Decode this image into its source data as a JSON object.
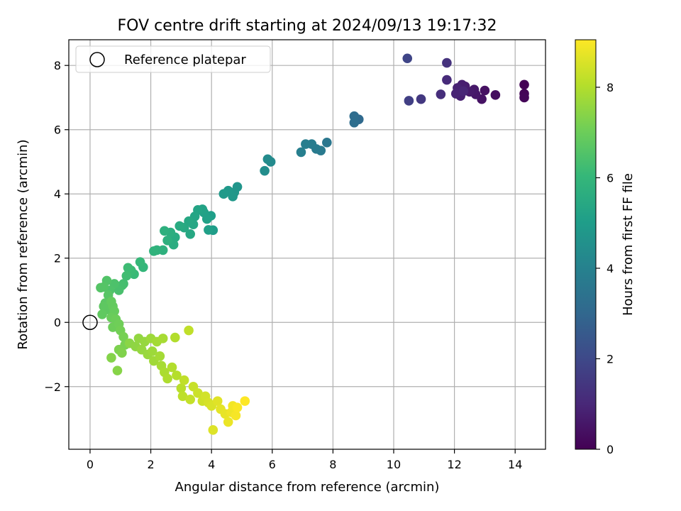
{
  "chart_data": {
    "type": "scatter",
    "title": "FOV centre drift starting at 2024/09/13 19:17:32",
    "xlabel": "Angular distance from reference (arcmin)",
    "ylabel": "Rotation from reference (arcmin)",
    "xlim": [
      -0.7,
      15.0
    ],
    "ylim": [
      -3.95,
      8.8
    ],
    "xticks": [
      0,
      2,
      4,
      6,
      8,
      10,
      12,
      14
    ],
    "yticks": [
      -2,
      0,
      2,
      4,
      6,
      8
    ],
    "xtick_labels": [
      "0",
      "2",
      "4",
      "6",
      "8",
      "10",
      "12",
      "14"
    ],
    "ytick_labels": [
      "−2",
      "0",
      "2",
      "4",
      "6",
      "8"
    ],
    "grid": true,
    "legend": {
      "position": "top-left",
      "entries": [
        {
          "label": "Reference platepar",
          "marker": "open-circle"
        }
      ]
    },
    "reference": {
      "x": 0,
      "y": 0
    },
    "colorbar": {
      "label": "Hours from first FF file",
      "range": [
        0,
        9.05
      ],
      "ticks": [
        0,
        2,
        4,
        6,
        8
      ],
      "tick_labels": [
        "0",
        "2",
        "4",
        "6",
        "8"
      ],
      "colormap": "viridis"
    },
    "colors": [
      "#440154",
      "#482878",
      "#3e4989",
      "#31688e",
      "#26828e",
      "#1f9e89",
      "#35b779",
      "#6ece58",
      "#b5de2b",
      "#fde725"
    ],
    "points": [
      [
        14.3,
        7.4,
        0.0
      ],
      [
        14.3,
        7.12,
        0.05
      ],
      [
        14.3,
        7.0,
        0.1
      ],
      [
        13.35,
        7.08,
        0.3
      ],
      [
        13.0,
        7.22,
        0.4
      ],
      [
        12.9,
        6.95,
        0.45
      ],
      [
        12.7,
        7.1,
        0.55
      ],
      [
        12.65,
        7.25,
        0.6
      ],
      [
        12.5,
        7.18,
        0.65
      ],
      [
        12.35,
        7.35,
        0.7
      ],
      [
        12.25,
        7.4,
        0.75
      ],
      [
        12.2,
        7.05,
        0.8
      ],
      [
        12.1,
        7.3,
        0.85
      ],
      [
        12.05,
        7.12,
        0.9
      ],
      [
        12.3,
        7.2,
        0.95
      ],
      [
        11.75,
        7.55,
        1.1
      ],
      [
        11.55,
        7.1,
        1.2
      ],
      [
        11.75,
        8.08,
        1.3
      ],
      [
        10.9,
        6.95,
        1.5
      ],
      [
        10.5,
        6.9,
        1.7
      ],
      [
        10.45,
        8.22,
        1.9
      ],
      [
        8.85,
        6.32,
        3.1
      ],
      [
        8.7,
        6.42,
        3.2
      ],
      [
        8.7,
        6.22,
        3.25
      ],
      [
        7.8,
        5.6,
        3.6
      ],
      [
        7.6,
        5.35,
        3.7
      ],
      [
        7.45,
        5.4,
        3.75
      ],
      [
        7.3,
        5.55,
        3.8
      ],
      [
        7.1,
        5.55,
        3.85
      ],
      [
        6.95,
        5.3,
        3.9
      ],
      [
        5.95,
        5.0,
        4.3
      ],
      [
        5.85,
        5.08,
        4.35
      ],
      [
        5.75,
        4.72,
        4.4
      ],
      [
        4.85,
        4.22,
        4.7
      ],
      [
        4.75,
        4.05,
        4.75
      ],
      [
        4.7,
        3.92,
        4.8
      ],
      [
        4.55,
        4.1,
        4.85
      ],
      [
        4.4,
        4.0,
        4.9
      ],
      [
        4.05,
        2.87,
        5.0
      ],
      [
        3.98,
        3.32,
        5.05
      ],
      [
        3.9,
        2.88,
        5.1
      ],
      [
        3.85,
        3.22,
        5.15
      ],
      [
        3.75,
        3.42,
        5.15
      ],
      [
        3.7,
        3.52,
        5.2
      ],
      [
        3.55,
        3.5,
        5.25
      ],
      [
        3.45,
        3.3,
        5.3
      ],
      [
        3.4,
        3.05,
        5.35
      ],
      [
        3.3,
        2.75,
        5.4
      ],
      [
        3.25,
        3.15,
        5.4
      ],
      [
        3.1,
        2.95,
        5.45
      ],
      [
        2.95,
        3.0,
        5.5
      ],
      [
        2.8,
        2.65,
        5.55
      ],
      [
        2.75,
        2.42,
        5.6
      ],
      [
        2.65,
        2.8,
        5.65
      ],
      [
        2.55,
        2.55,
        5.7
      ],
      [
        2.45,
        2.85,
        5.7
      ],
      [
        2.4,
        2.25,
        5.75
      ],
      [
        2.2,
        2.25,
        5.8
      ],
      [
        2.1,
        2.22,
        5.85
      ],
      [
        1.75,
        1.72,
        6.0
      ],
      [
        1.65,
        1.88,
        6.05
      ],
      [
        1.45,
        1.5,
        6.1
      ],
      [
        1.35,
        1.62,
        6.15
      ],
      [
        1.25,
        1.7,
        6.2
      ],
      [
        1.2,
        1.45,
        6.25
      ],
      [
        1.1,
        1.2,
        6.3
      ],
      [
        1.05,
        1.15,
        6.35
      ],
      [
        0.95,
        1.0,
        6.4
      ],
      [
        0.8,
        1.2,
        6.45
      ],
      [
        0.65,
        1.0,
        6.5
      ],
      [
        0.55,
        1.3,
        6.55
      ],
      [
        0.45,
        1.1,
        6.6
      ],
      [
        0.35,
        1.08,
        6.6
      ],
      [
        0.6,
        0.85,
        6.65
      ],
      [
        0.5,
        0.6,
        6.7
      ],
      [
        0.55,
        0.4,
        6.75
      ],
      [
        0.45,
        0.5,
        6.75
      ],
      [
        0.4,
        0.25,
        6.8
      ],
      [
        0.7,
        0.65,
        6.85
      ],
      [
        0.75,
        0.5,
        6.85
      ],
      [
        0.8,
        0.35,
        6.9
      ],
      [
        0.7,
        0.15,
        6.95
      ],
      [
        0.75,
        -0.15,
        7.0
      ],
      [
        0.85,
        0.1,
        7.0
      ],
      [
        0.95,
        -0.05,
        7.05
      ],
      [
        1.0,
        -0.25,
        7.1
      ],
      [
        1.1,
        -0.45,
        7.15
      ],
      [
        1.15,
        -0.7,
        7.2
      ],
      [
        0.95,
        -0.85,
        7.25
      ],
      [
        1.05,
        -0.95,
        7.3
      ],
      [
        0.7,
        -1.1,
        7.35
      ],
      [
        0.9,
        -1.5,
        7.4
      ],
      [
        1.3,
        -0.65,
        7.45
      ],
      [
        1.5,
        -0.75,
        7.5
      ],
      [
        1.6,
        -0.5,
        7.55
      ],
      [
        1.7,
        -0.85,
        7.6
      ],
      [
        1.8,
        -0.6,
        7.6
      ],
      [
        1.9,
        -1.0,
        7.65
      ],
      [
        2.0,
        -0.5,
        7.7
      ],
      [
        2.05,
        -0.9,
        7.7
      ],
      [
        2.1,
        -1.2,
        7.75
      ],
      [
        2.2,
        -0.6,
        7.8
      ],
      [
        2.3,
        -1.05,
        7.8
      ],
      [
        2.35,
        -1.35,
        7.85
      ],
      [
        2.4,
        -0.5,
        7.85
      ],
      [
        2.45,
        -1.55,
        7.9
      ],
      [
        2.55,
        -1.75,
        7.95
      ],
      [
        2.7,
        -1.4,
        8.0
      ],
      [
        2.8,
        -0.47,
        8.0
      ],
      [
        2.85,
        -1.65,
        8.05
      ],
      [
        3.0,
        -2.05,
        8.1
      ],
      [
        3.05,
        -2.3,
        8.15
      ],
      [
        3.1,
        -1.8,
        8.2
      ],
      [
        3.25,
        -0.25,
        8.2
      ],
      [
        3.3,
        -2.4,
        8.25
      ],
      [
        3.4,
        -2.0,
        8.3
      ],
      [
        3.55,
        -2.2,
        8.35
      ],
      [
        3.7,
        -2.45,
        8.4
      ],
      [
        3.8,
        -2.3,
        8.45
      ],
      [
        3.9,
        -2.5,
        8.5
      ],
      [
        4.0,
        -2.6,
        8.55
      ],
      [
        4.05,
        -3.35,
        8.6
      ],
      [
        4.2,
        -2.45,
        8.65
      ],
      [
        4.3,
        -2.7,
        8.7
      ],
      [
        4.45,
        -2.85,
        8.75
      ],
      [
        4.55,
        -3.1,
        8.8
      ],
      [
        4.65,
        -2.8,
        8.85
      ],
      [
        4.7,
        -2.6,
        8.9
      ],
      [
        4.8,
        -2.9,
        8.95
      ],
      [
        4.85,
        -2.65,
        9.0
      ],
      [
        5.1,
        -2.45,
        9.05
      ]
    ]
  }
}
